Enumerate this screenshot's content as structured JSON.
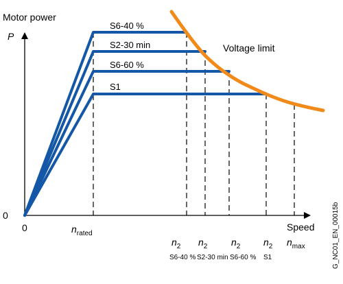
{
  "axes": {
    "y_title": "Motor power",
    "y_symbol": "P",
    "y_zero": "0",
    "x_zero": "0",
    "x_title": "Speed"
  },
  "n_rated": {
    "symbol": "n",
    "subscript": "rated"
  },
  "curves": [
    {
      "label": "S6-40 %"
    },
    {
      "label": "S2-30 min"
    },
    {
      "label": "S6-60 %"
    },
    {
      "label": "S1"
    }
  ],
  "voltage_limit": {
    "label": "Voltage limit"
  },
  "n2_labels": [
    {
      "symbol": "n",
      "subscript": "2",
      "caption": "S6-40 %"
    },
    {
      "symbol": "n",
      "subscript": "2",
      "caption": "S2-30 min"
    },
    {
      "symbol": "n",
      "subscript": "2",
      "caption": "S6-60 %"
    },
    {
      "symbol": "n",
      "subscript": "2",
      "caption": "S1"
    }
  ],
  "n_max": {
    "symbol": "n",
    "subscript": "max"
  },
  "figure_id": "G_NC01_EN_00015b",
  "colors": {
    "curve": "#1457a6",
    "limit": "#f28a1a",
    "axis": "#000000"
  }
}
